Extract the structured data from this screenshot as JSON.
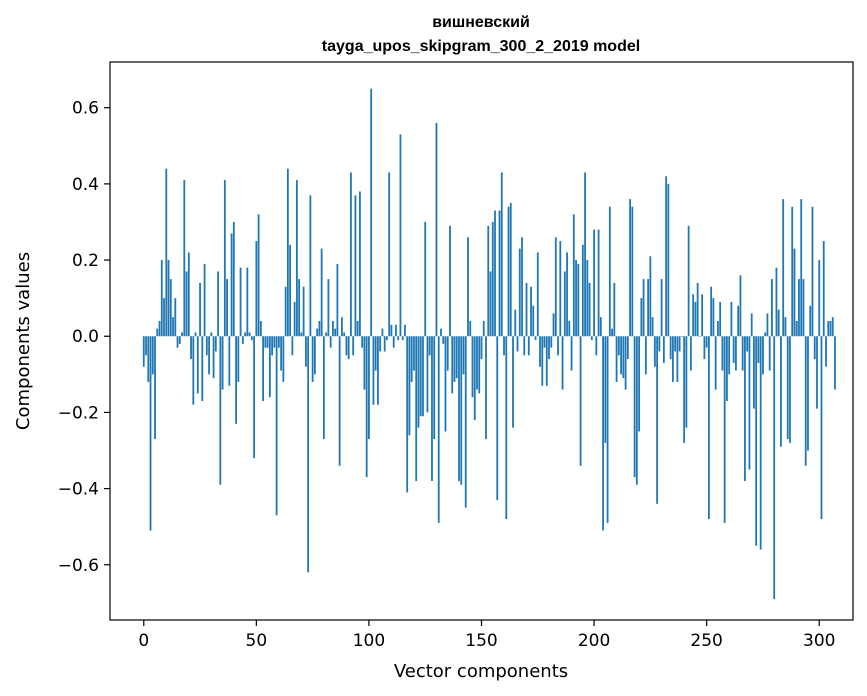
{
  "chart_data": {
    "type": "bar",
    "title": "вишневский",
    "subtitle": "tayga_upos_skipgram_300_2_2019 model",
    "xlabel": "Vector components",
    "ylabel": "Components values",
    "xlim": [
      -15,
      315
    ],
    "ylim": [
      -0.745,
      0.72
    ],
    "xticks": [
      0,
      50,
      100,
      150,
      200,
      250,
      300
    ],
    "yticks": [
      -0.6,
      -0.4,
      -0.2,
      0.0,
      0.2,
      0.4,
      0.6
    ],
    "ytick_labels": [
      "−0.6",
      "−0.4",
      "−0.2",
      "0.0",
      "0.2",
      "0.4",
      "0.6"
    ],
    "bar_color": "#1f77b4",
    "values": [
      -0.08,
      -0.05,
      -0.12,
      -0.51,
      -0.1,
      -0.27,
      0.02,
      0.04,
      0.2,
      0.1,
      0.44,
      0.2,
      0.15,
      0.05,
      0.1,
      -0.03,
      -0.02,
      0.01,
      0.41,
      0.17,
      0.22,
      -0.06,
      -0.18,
      0.01,
      -0.15,
      0.14,
      -0.17,
      0.19,
      -0.05,
      -0.1,
      0.01,
      -0.11,
      -0.04,
      0.17,
      -0.39,
      -0.14,
      0.41,
      0.15,
      -0.13,
      0.27,
      0.3,
      -0.23,
      -0.12,
      0.18,
      -0.02,
      0.01,
      0.18,
      0.01,
      -0.01,
      -0.32,
      0.25,
      0.32,
      0.04,
      -0.17,
      -0.03,
      -0.03,
      -0.16,
      -0.05,
      -0.03,
      -0.47,
      -0.03,
      -0.09,
      -0.12,
      0.13,
      0.44,
      0.24,
      -0.05,
      0.09,
      0.41,
      0.15,
      0.01,
      0.13,
      -0.08,
      -0.62,
      0.37,
      -0.12,
      -0.1,
      0.02,
      0.04,
      0.23,
      -0.27,
      0.01,
      0.15,
      -0.03,
      0.04,
      0.02,
      0.19,
      -0.34,
      0.05,
      0.01,
      -0.05,
      -0.06,
      0.43,
      -0.05,
      0.37,
      0.04,
      0.38,
      -0.03,
      -0.14,
      -0.37,
      -0.27,
      0.65,
      -0.18,
      -0.09,
      -0.18,
      -0.04,
      0.02,
      -0.04,
      -0.01,
      0.43,
      0.03,
      -0.03,
      0.03,
      -0.01,
      0.53,
      -0.01,
      0.03,
      -0.41,
      -0.26,
      -0.12,
      -0.09,
      -0.38,
      -0.24,
      -0.21,
      -0.21,
      0.3,
      -0.2,
      -0.05,
      -0.38,
      -0.27,
      0.56,
      -0.49,
      0.02,
      -0.02,
      -0.25,
      -0.09,
      0.29,
      -0.15,
      -0.12,
      -0.11,
      -0.38,
      -0.39,
      -0.1,
      -0.45,
      0.26,
      0.04,
      -0.16,
      -0.22,
      -0.14,
      -0.15,
      -0.06,
      0.04,
      -0.27,
      0.29,
      0.17,
      0.3,
      0.33,
      -0.43,
      0.33,
      0.43,
      -0.05,
      -0.48,
      0.34,
      0.35,
      -0.24,
      0.07,
      -0.04,
      0.23,
      0.26,
      -0.05,
      0.14,
      -0.05,
      0.13,
      0.08,
      -0.01,
      0.22,
      -0.08,
      -0.13,
      -0.03,
      -0.13,
      -0.06,
      -0.03,
      0.06,
      0.26,
      -0.05,
      0.25,
      -0.14,
      0.17,
      0.22,
      0.04,
      -0.09,
      0.32,
      0.2,
      0.19,
      -0.34,
      0.24,
      0.43,
      0.2,
      0.14,
      -0.01,
      0.28,
      -0.05,
      0.28,
      0.05,
      -0.51,
      -0.28,
      -0.49,
      0.34,
      0.02,
      0.14,
      -0.12,
      -0.05,
      -0.1,
      -0.11,
      -0.14,
      -0.06,
      0.36,
      0.34,
      -0.37,
      -0.39,
      -0.25,
      0.1,
      0.15,
      -0.1,
      0.15,
      0.21,
      0.05,
      -0.08,
      -0.44,
      -0.04,
      0.15,
      -0.07,
      0.42,
      0.4,
      -0.06,
      -0.12,
      -0.04,
      -0.12,
      -0.04,
      0.0,
      -0.28,
      -0.24,
      0.29,
      -0.09,
      0.11,
      0.09,
      0.14,
      0.0,
      0.11,
      -0.06,
      -0.03,
      -0.48,
      0.13,
      0.1,
      -0.14,
      0.04,
      0.09,
      -0.09,
      -0.49,
      -0.17,
      -0.1,
      0.09,
      -0.07,
      -0.09,
      0.08,
      0.16,
      -0.09,
      -0.38,
      -0.04,
      -0.35,
      0.06,
      -0.19,
      -0.55,
      -0.07,
      -0.56,
      -0.1,
      0.01,
      0.06,
      -0.09,
      0.15,
      -0.69,
      0.18,
      0.07,
      -0.29,
      0.36,
      0.05,
      -0.27,
      -0.28,
      0.34,
      0.23,
      0.04,
      0.15,
      0.36,
      0.15,
      -0.34,
      -0.3,
      0.08,
      0.34,
      -0.06,
      -0.19,
      0.2,
      -0.48,
      0.25,
      -0.08,
      0.04,
      0.04,
      0.05,
      -0.14
    ]
  }
}
